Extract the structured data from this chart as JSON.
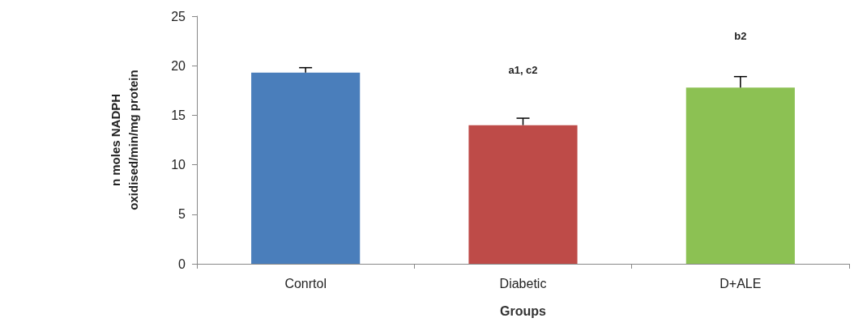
{
  "chart_data": {
    "type": "bar",
    "categories": [
      "Conrtol",
      "Diabetic",
      "D+ALE"
    ],
    "values": [
      19.3,
      14.0,
      17.8
    ],
    "colors": [
      "#4a7ebb",
      "#be4b48",
      "#8cc153"
    ],
    "errors": [
      [
        19.3,
        19.8
      ],
      [
        14.0,
        14.7
      ],
      [
        17.8,
        18.9
      ]
    ],
    "xlabel": "Groups",
    "ylabel": "n moles NADPH\noxidised/min/mg protein",
    "ylim": [
      0,
      25
    ],
    "yticks": [
      0,
      5,
      10,
      15,
      20,
      25
    ],
    "annotations": [
      "a1, c2",
      "b2"
    ],
    "grid": false
  }
}
